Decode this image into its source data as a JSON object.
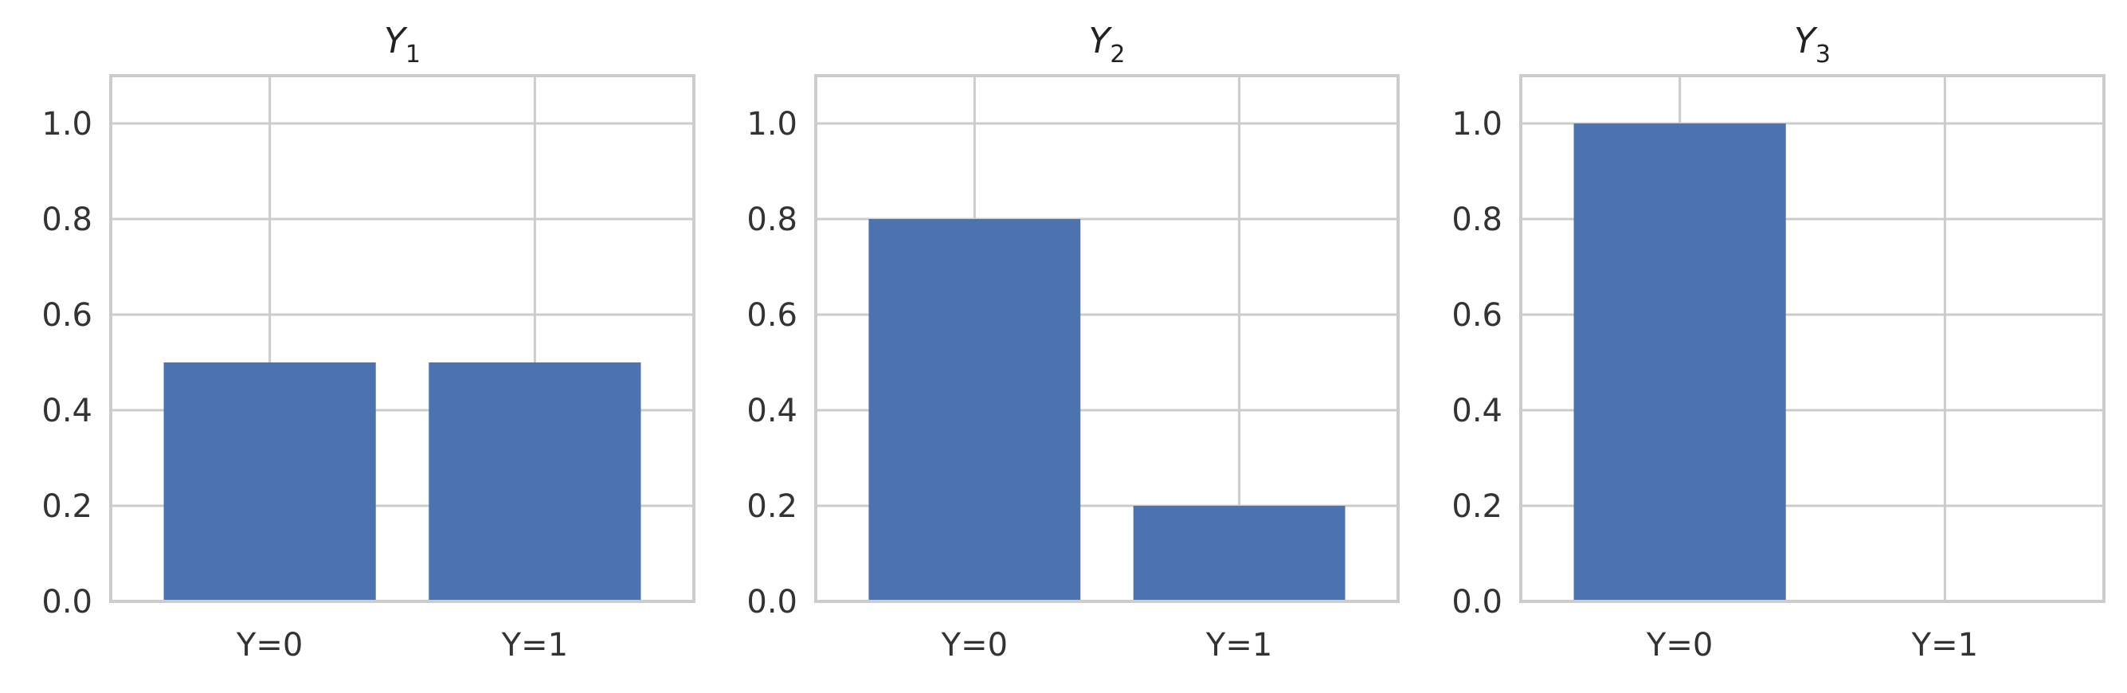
{
  "chart_data": [
    {
      "type": "bar",
      "title": "Y",
      "title_subscript": "1",
      "categories": [
        "Y=0",
        "Y=1"
      ],
      "values": [
        0.5,
        0.5
      ],
      "ylim": [
        0,
        1.1
      ],
      "yticks": [
        "0.0",
        "0.2",
        "0.4",
        "0.6",
        "0.8",
        "1.0"
      ],
      "xlabel": "",
      "ylabel": "",
      "grid": true
    },
    {
      "type": "bar",
      "title": "Y",
      "title_subscript": "2",
      "categories": [
        "Y=0",
        "Y=1"
      ],
      "values": [
        0.8,
        0.2
      ],
      "ylim": [
        0,
        1.1
      ],
      "yticks": [
        "0.0",
        "0.2",
        "0.4",
        "0.6",
        "0.8",
        "1.0"
      ],
      "xlabel": "",
      "ylabel": "",
      "grid": true
    },
    {
      "type": "bar",
      "title": "Y",
      "title_subscript": "3",
      "categories": [
        "Y=0",
        "Y=1"
      ],
      "values": [
        1.0,
        0.0
      ],
      "ylim": [
        0,
        1.1
      ],
      "yticks": [
        "0.0",
        "0.2",
        "0.4",
        "0.6",
        "0.8",
        "1.0"
      ],
      "xlabel": "",
      "ylabel": "",
      "grid": true
    }
  ],
  "colors": {
    "bar": "#4c72b0",
    "grid": "#cccccc",
    "axes_edge": "#cccccc",
    "text": "#333333"
  }
}
